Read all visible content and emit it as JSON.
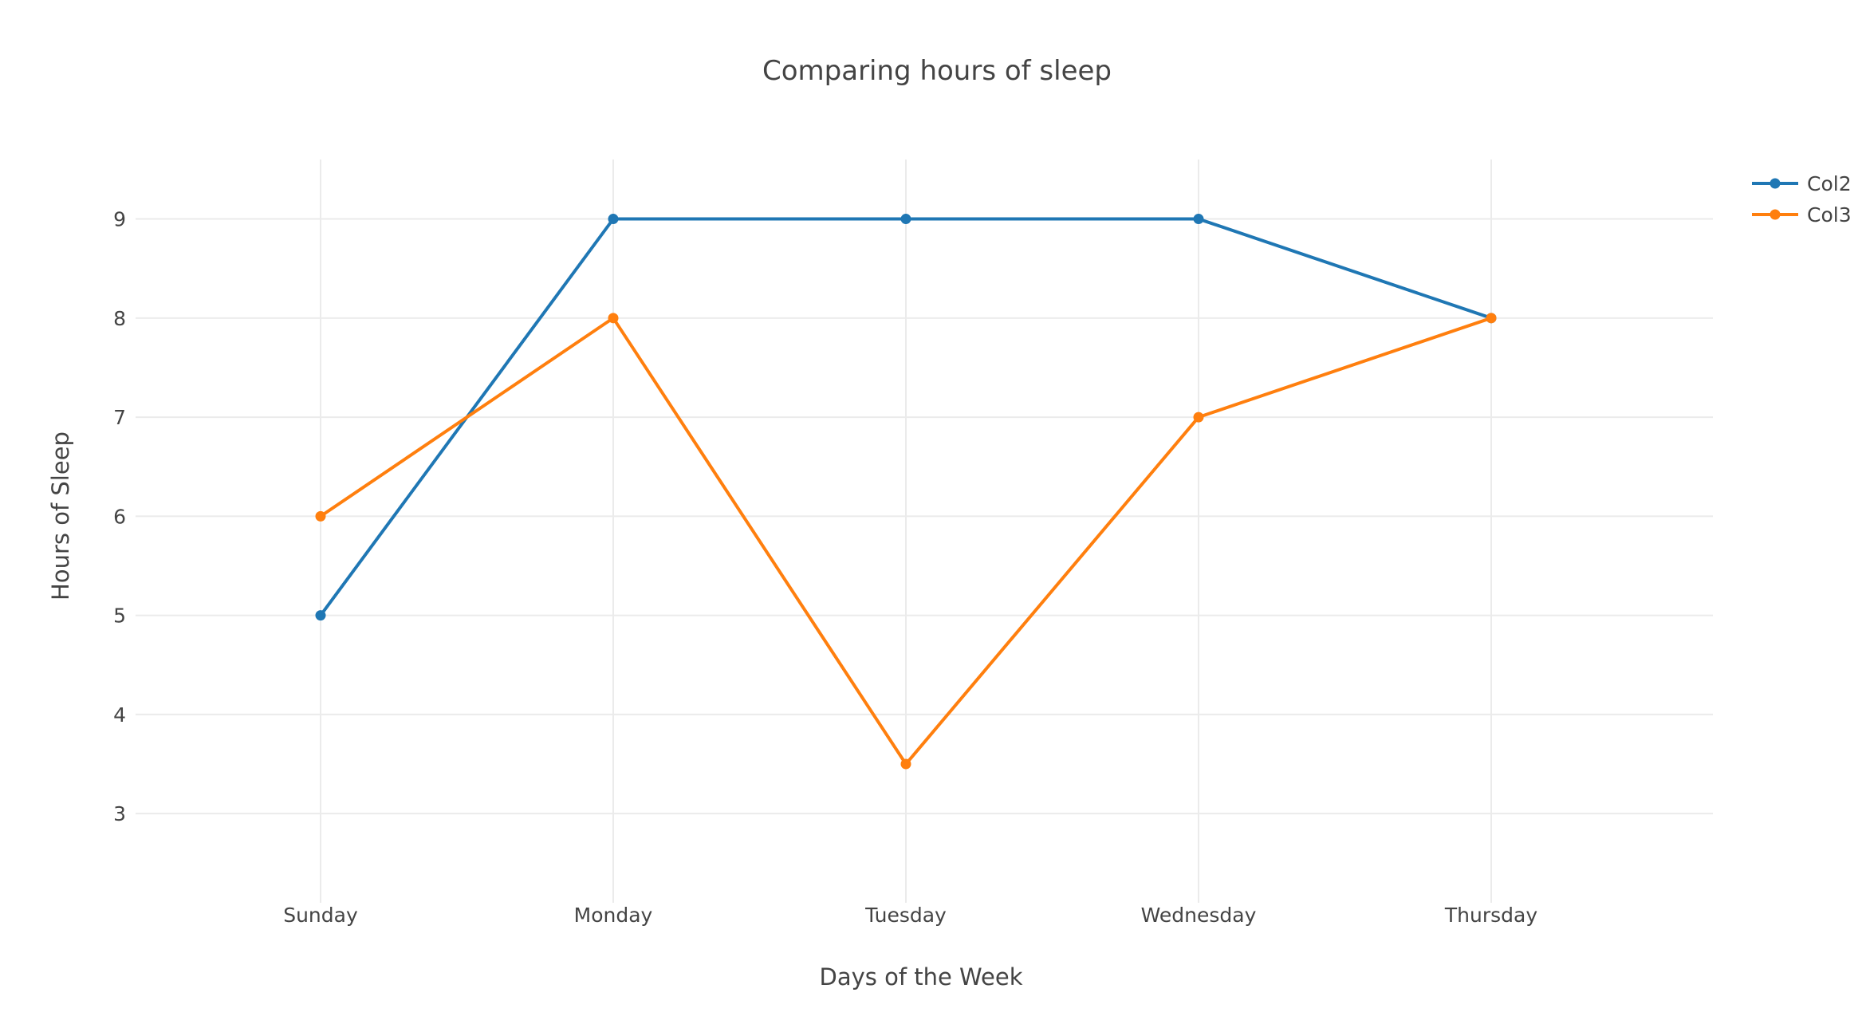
{
  "chart_data": {
    "type": "line",
    "title": "Comparing hours of sleep",
    "xlabel": "Days of the Week",
    "ylabel": "Hours of Sleep",
    "categories": [
      "Sunday",
      "Monday",
      "Tuesday",
      "Wednesday",
      "Thursday"
    ],
    "series": [
      {
        "name": "Col2",
        "color": "#1f77b4",
        "values": [
          5,
          9,
          9,
          9,
          8
        ]
      },
      {
        "name": "Col3",
        "color": "#ff7f0e",
        "values": [
          6,
          8,
          3.5,
          7,
          8
        ]
      }
    ],
    "ylim": [
      2.1,
      9.6
    ],
    "yticks": [
      3,
      4,
      5,
      6,
      7,
      8,
      9
    ],
    "grid": true,
    "legend": "top-right",
    "markers": true
  }
}
